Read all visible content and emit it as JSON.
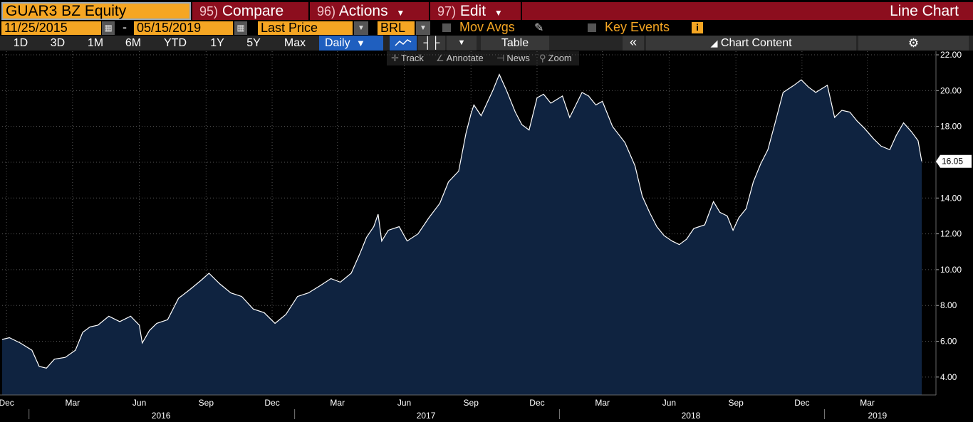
{
  "toolbar": {
    "ticker": "GUAR3 BZ Equity",
    "compare": {
      "num": "95)",
      "label": "Compare"
    },
    "actions": {
      "num": "96)",
      "label": "Actions"
    },
    "edit": {
      "num": "97)",
      "label": "Edit"
    },
    "chart_type": "Line Chart"
  },
  "settings": {
    "start_date": "11/25/2015",
    "dash": "-",
    "end_date": "05/15/2019",
    "field": "Last Price",
    "currency": "BRL",
    "mov_avgs": "Mov Avgs",
    "key_events": "Key Events",
    "info_glyph": "i"
  },
  "periods": [
    "1D",
    "3D",
    "1M",
    "6M",
    "YTD",
    "1Y",
    "5Y",
    "Max"
  ],
  "frequency": "Daily",
  "table_label": "Table",
  "collapse_glyph": "«",
  "chart_content_label": "Chart Content",
  "tools": {
    "track": "Track",
    "annotate": "Annotate",
    "news": "News",
    "zoom": "Zoom"
  },
  "colors": {
    "accent_orange": "#f5a623",
    "header_red": "#8c0e1e",
    "area_fill": "#0f2340",
    "line": "#ffffff",
    "selected_blue": "#1f5fbf"
  },
  "chart_data": {
    "type": "area",
    "y_ticks": [
      "4.00",
      "6.00",
      "8.00",
      "10.00",
      "12.00",
      "14.00",
      "16.00",
      "18.00",
      "20.00",
      "22.00"
    ],
    "ylim": [
      3,
      22.2
    ],
    "last_value": "16.05",
    "months": [
      {
        "label": "Dec",
        "date": "2015-12-01"
      },
      {
        "label": "Mar",
        "date": "2016-03-01"
      },
      {
        "label": "Jun",
        "date": "2016-06-01"
      },
      {
        "label": "Sep",
        "date": "2016-09-01"
      },
      {
        "label": "Dec",
        "date": "2016-12-01"
      },
      {
        "label": "Mar",
        "date": "2017-03-01"
      },
      {
        "label": "Jun",
        "date": "2017-06-01"
      },
      {
        "label": "Sep",
        "date": "2017-09-01"
      },
      {
        "label": "Dec",
        "date": "2017-12-01"
      },
      {
        "label": "Mar",
        "date": "2018-03-01"
      },
      {
        "label": "Jun",
        "date": "2018-06-01"
      },
      {
        "label": "Sep",
        "date": "2018-09-01"
      },
      {
        "label": "Dec",
        "date": "2018-12-01"
      },
      {
        "label": "Mar",
        "date": "2019-03-01"
      }
    ],
    "years": [
      {
        "label": "2016",
        "date": "2016-07-01"
      },
      {
        "label": "2017",
        "date": "2017-07-01"
      },
      {
        "label": "2018",
        "date": "2018-07-01"
      },
      {
        "label": "2019",
        "date": "2019-03-15"
      }
    ],
    "x_range": [
      "2015-11-25",
      "2019-05-15"
    ],
    "series": [
      {
        "values": [
          [
            "2015-11-25",
            6.1
          ],
          [
            "2015-12-05",
            6.2
          ],
          [
            "2015-12-20",
            5.9
          ],
          [
            "2016-01-05",
            5.5
          ],
          [
            "2016-01-15",
            4.6
          ],
          [
            "2016-01-25",
            4.5
          ],
          [
            "2016-02-05",
            5.0
          ],
          [
            "2016-02-20",
            5.1
          ],
          [
            "2016-03-05",
            5.5
          ],
          [
            "2016-03-15",
            6.5
          ],
          [
            "2016-03-25",
            6.8
          ],
          [
            "2016-04-05",
            6.9
          ],
          [
            "2016-04-20",
            7.4
          ],
          [
            "2016-05-05",
            7.1
          ],
          [
            "2016-05-20",
            7.4
          ],
          [
            "2016-06-01",
            6.9
          ],
          [
            "2016-06-05",
            5.9
          ],
          [
            "2016-06-15",
            6.6
          ],
          [
            "2016-06-25",
            7.0
          ],
          [
            "2016-07-10",
            7.2
          ],
          [
            "2016-07-25",
            8.4
          ],
          [
            "2016-08-10",
            8.9
          ],
          [
            "2016-08-25",
            9.4
          ],
          [
            "2016-09-05",
            9.8
          ],
          [
            "2016-09-20",
            9.2
          ],
          [
            "2016-10-05",
            8.7
          ],
          [
            "2016-10-20",
            8.5
          ],
          [
            "2016-11-05",
            7.8
          ],
          [
            "2016-11-20",
            7.6
          ],
          [
            "2016-12-05",
            7.0
          ],
          [
            "2016-12-20",
            7.5
          ],
          [
            "2017-01-05",
            8.5
          ],
          [
            "2017-01-20",
            8.7
          ],
          [
            "2017-02-05",
            9.1
          ],
          [
            "2017-02-20",
            9.5
          ],
          [
            "2017-03-05",
            9.3
          ],
          [
            "2017-03-20",
            9.8
          ],
          [
            "2017-04-01",
            10.9
          ],
          [
            "2017-04-10",
            11.8
          ],
          [
            "2017-04-20",
            12.4
          ],
          [
            "2017-04-26",
            13.1
          ],
          [
            "2017-05-01",
            11.6
          ],
          [
            "2017-05-10",
            12.2
          ],
          [
            "2017-05-25",
            12.4
          ],
          [
            "2017-06-05",
            11.6
          ],
          [
            "2017-06-20",
            12.0
          ],
          [
            "2017-07-05",
            12.9
          ],
          [
            "2017-07-20",
            13.7
          ],
          [
            "2017-08-01",
            14.9
          ],
          [
            "2017-08-15",
            15.5
          ],
          [
            "2017-08-25",
            17.6
          ],
          [
            "2017-09-01",
            18.7
          ],
          [
            "2017-09-05",
            19.2
          ],
          [
            "2017-09-15",
            18.6
          ],
          [
            "2017-10-01",
            20.0
          ],
          [
            "2017-10-10",
            20.9
          ],
          [
            "2017-10-20",
            20.0
          ],
          [
            "2017-11-01",
            18.8
          ],
          [
            "2017-11-10",
            18.1
          ],
          [
            "2017-11-20",
            17.8
          ],
          [
            "2017-12-01",
            19.6
          ],
          [
            "2017-12-10",
            19.8
          ],
          [
            "2017-12-20",
            19.3
          ],
          [
            "2018-01-05",
            19.7
          ],
          [
            "2018-01-15",
            18.5
          ],
          [
            "2018-02-01",
            19.9
          ],
          [
            "2018-02-10",
            19.7
          ],
          [
            "2018-02-20",
            19.2
          ],
          [
            "2018-03-01",
            19.4
          ],
          [
            "2018-03-15",
            18.0
          ],
          [
            "2018-04-01",
            17.1
          ],
          [
            "2018-04-15",
            15.8
          ],
          [
            "2018-04-25",
            14.1
          ],
          [
            "2018-05-05",
            13.2
          ],
          [
            "2018-05-15",
            12.4
          ],
          [
            "2018-05-25",
            11.9
          ],
          [
            "2018-06-05",
            11.6
          ],
          [
            "2018-06-15",
            11.4
          ],
          [
            "2018-06-25",
            11.7
          ],
          [
            "2018-07-05",
            12.3
          ],
          [
            "2018-07-20",
            12.5
          ],
          [
            "2018-08-01",
            13.8
          ],
          [
            "2018-08-10",
            13.2
          ],
          [
            "2018-08-20",
            13.0
          ],
          [
            "2018-08-28",
            12.2
          ],
          [
            "2018-09-05",
            12.9
          ],
          [
            "2018-09-15",
            13.4
          ],
          [
            "2018-09-25",
            14.9
          ],
          [
            "2018-10-05",
            15.9
          ],
          [
            "2018-10-15",
            16.7
          ],
          [
            "2018-10-25",
            18.2
          ],
          [
            "2018-11-05",
            19.9
          ],
          [
            "2018-11-20",
            20.3
          ],
          [
            "2018-11-30",
            20.6
          ],
          [
            "2018-12-10",
            20.2
          ],
          [
            "2018-12-20",
            19.9
          ],
          [
            "2019-01-05",
            20.3
          ],
          [
            "2019-01-15",
            18.5
          ],
          [
            "2019-01-25",
            18.9
          ],
          [
            "2019-02-05",
            18.8
          ],
          [
            "2019-02-15",
            18.3
          ],
          [
            "2019-02-25",
            17.9
          ],
          [
            "2019-03-10",
            17.3
          ],
          [
            "2019-03-20",
            16.9
          ],
          [
            "2019-04-01",
            16.7
          ],
          [
            "2019-04-10",
            17.5
          ],
          [
            "2019-04-20",
            18.2
          ],
          [
            "2019-05-01",
            17.7
          ],
          [
            "2019-05-10",
            17.2
          ],
          [
            "2019-05-15",
            16.05
          ]
        ]
      }
    ]
  }
}
